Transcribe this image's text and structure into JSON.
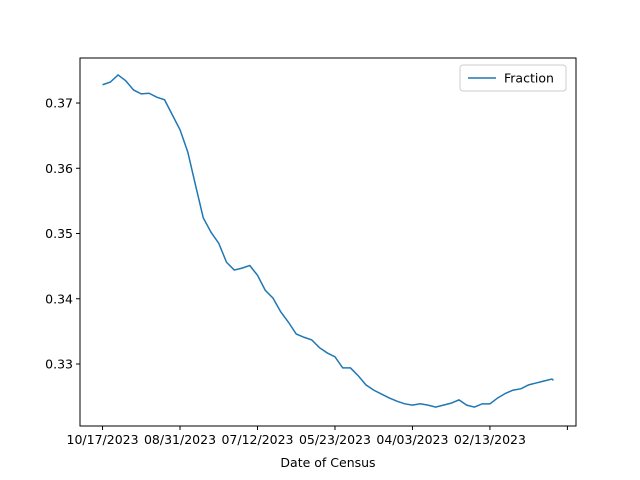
{
  "chart_data": {
    "type": "line",
    "xlabel": "Date of Census",
    "x": [
      0,
      5,
      10,
      15,
      20,
      25,
      30,
      35,
      40,
      45,
      50,
      55,
      60,
      65,
      70,
      75,
      80,
      85,
      90,
      95,
      100,
      105,
      110,
      115,
      120,
      125,
      130,
      135,
      140,
      145,
      150,
      155,
      160,
      165,
      170,
      175,
      180,
      185,
      190,
      195,
      200,
      205,
      210,
      215,
      220,
      225,
      230,
      235,
      240,
      245,
      250,
      255,
      260,
      265,
      270,
      275,
      280,
      285,
      290,
      291
    ],
    "series": [
      {
        "name": "Fraction",
        "color": "#1f77b4",
        "values": [
          0.3728,
          0.3732,
          0.3743,
          0.3734,
          0.372,
          0.3714,
          0.3715,
          0.3709,
          0.3705,
          0.3682,
          0.3659,
          0.3625,
          0.3574,
          0.3524,
          0.3502,
          0.3485,
          0.3456,
          0.3444,
          0.3447,
          0.3451,
          0.3436,
          0.3413,
          0.3401,
          0.338,
          0.3364,
          0.3346,
          0.3341,
          0.3337,
          0.3325,
          0.3317,
          0.3311,
          0.3294,
          0.3294,
          0.3282,
          0.3268,
          0.326,
          0.3254,
          0.3248,
          0.3243,
          0.3239,
          0.3237,
          0.3239,
          0.3237,
          0.3234,
          0.3237,
          0.324,
          0.3245,
          0.3237,
          0.3234,
          0.3239,
          0.3239,
          0.3248,
          0.3255,
          0.326,
          0.3262,
          0.3268,
          0.3271,
          0.3274,
          0.3277,
          0.3275
        ]
      }
    ],
    "xlim": [
      -14.55,
      305.55
    ],
    "xticks": [
      {
        "value": 0,
        "label": "10/17/2023"
      },
      {
        "value": 50,
        "label": "08/31/2023"
      },
      {
        "value": 100,
        "label": "07/12/2023"
      },
      {
        "value": 150,
        "label": "05/23/2023"
      },
      {
        "value": 200,
        "label": "04/03/2023"
      },
      {
        "value": 250,
        "label": "02/13/2023"
      },
      {
        "value": 300
      }
    ],
    "ylim": [
      0.3205,
      0.3769
    ],
    "yticks": [
      0.33,
      0.34,
      0.35,
      0.36,
      0.37
    ],
    "legend": "upper right"
  }
}
